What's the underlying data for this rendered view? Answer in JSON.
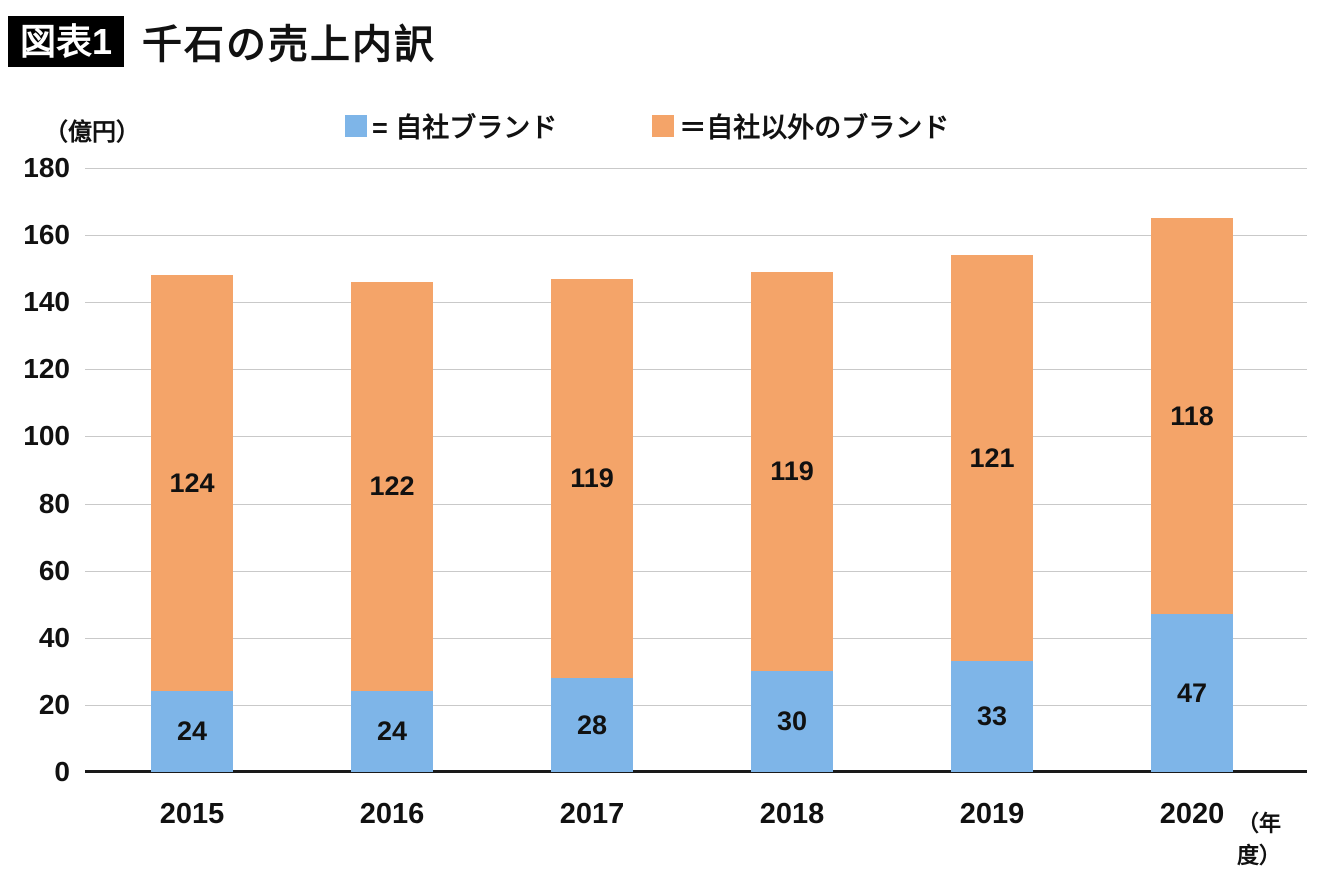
{
  "header": {
    "badge": "図表1",
    "title": "千石の売上内訳"
  },
  "legend": {
    "items": [
      {
        "label": "= 自社ブランド",
        "color": "#7EB5E8"
      },
      {
        "label": "＝自社以外のブランド",
        "color": "#F4A469"
      }
    ]
  },
  "chart_data": {
    "type": "bar",
    "stacked": true,
    "title": "千石の売上内訳",
    "unit_label": "（億円）",
    "x_suffix_label": "（年度）",
    "categories": [
      "2015",
      "2016",
      "2017",
      "2018",
      "2019",
      "2020"
    ],
    "series": [
      {
        "name": "自社ブランド",
        "color": "#7EB5E8",
        "values": [
          24,
          24,
          28,
          30,
          33,
          47
        ]
      },
      {
        "name": "自社以外のブランド",
        "color": "#F4A469",
        "values": [
          124,
          122,
          119,
          119,
          121,
          118
        ]
      }
    ],
    "totals": [
      148,
      146,
      147,
      149,
      154,
      165
    ],
    "ylim": [
      0,
      180
    ],
    "ytick_step": 20,
    "grid": true,
    "legend_position": "top",
    "axis_color": "#1a1a1a",
    "grid_color": "#c9c9c9"
  }
}
